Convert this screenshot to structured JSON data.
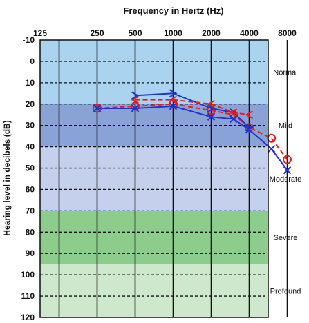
{
  "chart_data": {
    "type": "line",
    "title": "Frequency in Hertz (Hz)",
    "xlabel": "Frequency in Hertz (Hz)",
    "ylabel": "Hearing level in decibels (dB)",
    "x_scale": "log2",
    "x_ticks": [
      125,
      250,
      500,
      1000,
      2000,
      4000,
      8000
    ],
    "x_tick_labels": [
      "125",
      "250",
      "500",
      "1000",
      "2000",
      "4000",
      "8000"
    ],
    "y_ticks": [
      -10,
      0,
      10,
      20,
      30,
      40,
      50,
      60,
      70,
      80,
      90,
      100,
      110,
      120
    ],
    "y_tick_labels": [
      "-10",
      "0",
      "10",
      "20",
      "30",
      "40",
      "50",
      "60",
      "70",
      "80",
      "90",
      "100",
      "110",
      "120"
    ],
    "ylim": [
      -10,
      120
    ],
    "y_inverted": true,
    "bands": [
      {
        "label": "Normal",
        "from": -10,
        "to": 20,
        "color": "#a9d3ee"
      },
      {
        "label": "Mild",
        "from": 20,
        "to": 40,
        "color": "#8aa3d6"
      },
      {
        "label": "Moderate",
        "from": 40,
        "to": 70,
        "color": "#c4d0ec"
      },
      {
        "label": "Severe",
        "from": 70,
        "to": 95,
        "color": "#8ccd8c"
      },
      {
        "label": "Profound",
        "from": 95,
        "to": 120,
        "color": "#cde8cc"
      }
    ],
    "series": [
      {
        "marker": "circle",
        "color": "#e02020",
        "line": "dashed",
        "x": [
          250,
          500,
          1000,
          2000,
          3000,
          4000,
          6000,
          8000
        ],
        "y": [
          22,
          21,
          20,
          23,
          25,
          31,
          36,
          46
        ]
      },
      {
        "marker": "x",
        "color": "#2233cc",
        "line": "solid",
        "x": [
          250,
          500,
          1000,
          2000,
          3000,
          4000,
          6000,
          8000
        ],
        "y": [
          22,
          22,
          21,
          26,
          27,
          32,
          41,
          51
        ]
      },
      {
        "marker": ">",
        "color": "#2233cc",
        "line": "solid",
        "x": [
          500,
          1000,
          2000,
          3000,
          4000
        ],
        "y": [
          16,
          15,
          22,
          24,
          31
        ]
      },
      {
        "marker": "<",
        "color": "#e02020",
        "line": "dashed",
        "x": [
          500,
          1000,
          2000,
          3000,
          4000
        ],
        "y": [
          18,
          18,
          20,
          24,
          25
        ]
      }
    ],
    "grid": true,
    "colors": {
      "vertical_grid": "#111111",
      "horizontal_grid": "#111111",
      "frame": "#111111"
    }
  }
}
